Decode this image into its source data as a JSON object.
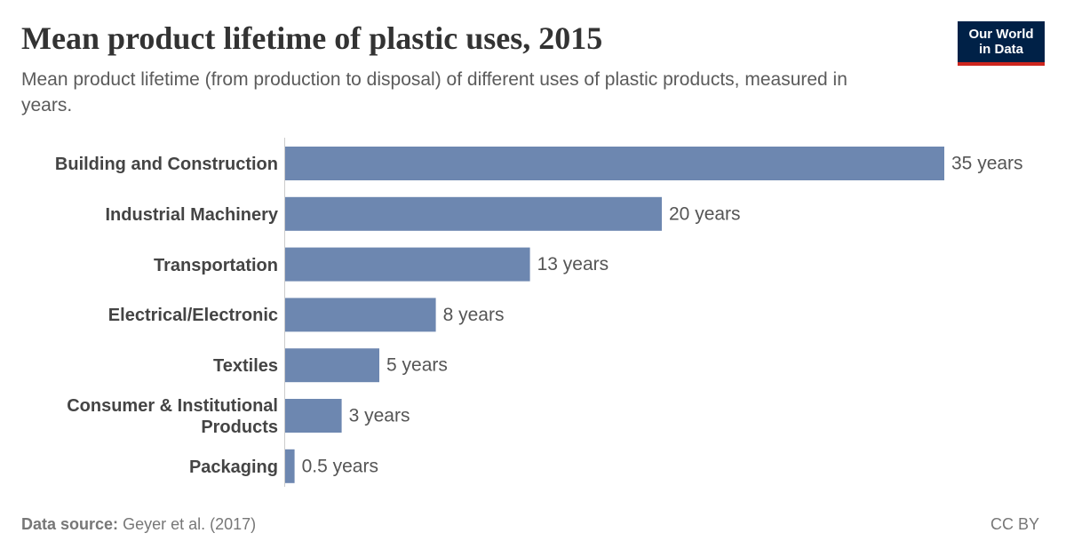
{
  "header": {
    "title": "Mean product lifetime of plastic uses, 2015",
    "subtitle": "Mean product lifetime (from production to disposal) of different uses of plastic products, measured in years.",
    "logo": [
      "Our World",
      "in Data"
    ]
  },
  "chart_data": {
    "type": "bar",
    "orientation": "horizontal",
    "color": "#6d87b0",
    "categories": [
      "Building and Construction",
      "Industrial Machinery",
      "Transportation",
      "Electrical/Electronic",
      "Textiles",
      "Consumer & Institutional Products",
      "Packaging"
    ],
    "values": [
      35,
      20,
      13,
      8,
      5,
      3,
      0.5
    ],
    "value_labels": [
      "35 years",
      "20 years",
      "13 years",
      "8 years",
      "5 years",
      "3 years",
      "0.5 years"
    ]
  },
  "footer": {
    "source_label": "Data source:",
    "source": "Geyer et al. (2017)",
    "license": "CC BY"
  }
}
